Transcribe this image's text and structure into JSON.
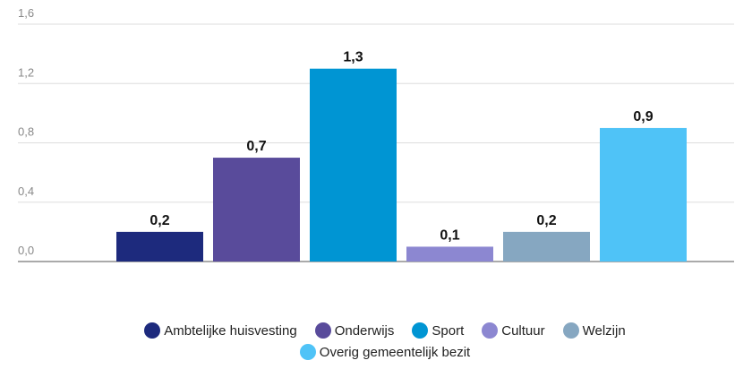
{
  "chart_data": {
    "type": "bar",
    "series": [
      {
        "name": "Ambtelijke huisvesting",
        "color": "#1d2a7d",
        "values": [
          0.2
        ],
        "value_labels": [
          "0,2"
        ]
      },
      {
        "name": "Onderwijs",
        "color": "#594b9b",
        "values": [
          0.7
        ],
        "value_labels": [
          "0,7"
        ]
      },
      {
        "name": "Sport",
        "color": "#0095d3",
        "values": [
          1.3
        ],
        "value_labels": [
          "1,3"
        ]
      },
      {
        "name": "Cultuur",
        "color": "#8c87d1",
        "values": [
          0.1
        ],
        "value_labels": [
          "0,1"
        ]
      },
      {
        "name": "Welzijn",
        "color": "#86a7c1",
        "values": [
          0.2
        ],
        "value_labels": [
          "0,2"
        ]
      },
      {
        "name": "Overig gemeentelijk bezit",
        "color": "#4fc3f7",
        "values": [
          0.9
        ],
        "value_labels": [
          "0,9"
        ]
      }
    ],
    "ylim": [
      0,
      1.6
    ],
    "yticks": [
      {
        "value": 0,
        "label": "0,0"
      },
      {
        "value": 0.4,
        "label": "0,4"
      },
      {
        "value": 0.8,
        "label": "0,8"
      },
      {
        "value": 1.2,
        "label": "1,2"
      },
      {
        "value": 1.6,
        "label": "1,6"
      }
    ],
    "grid": true
  }
}
